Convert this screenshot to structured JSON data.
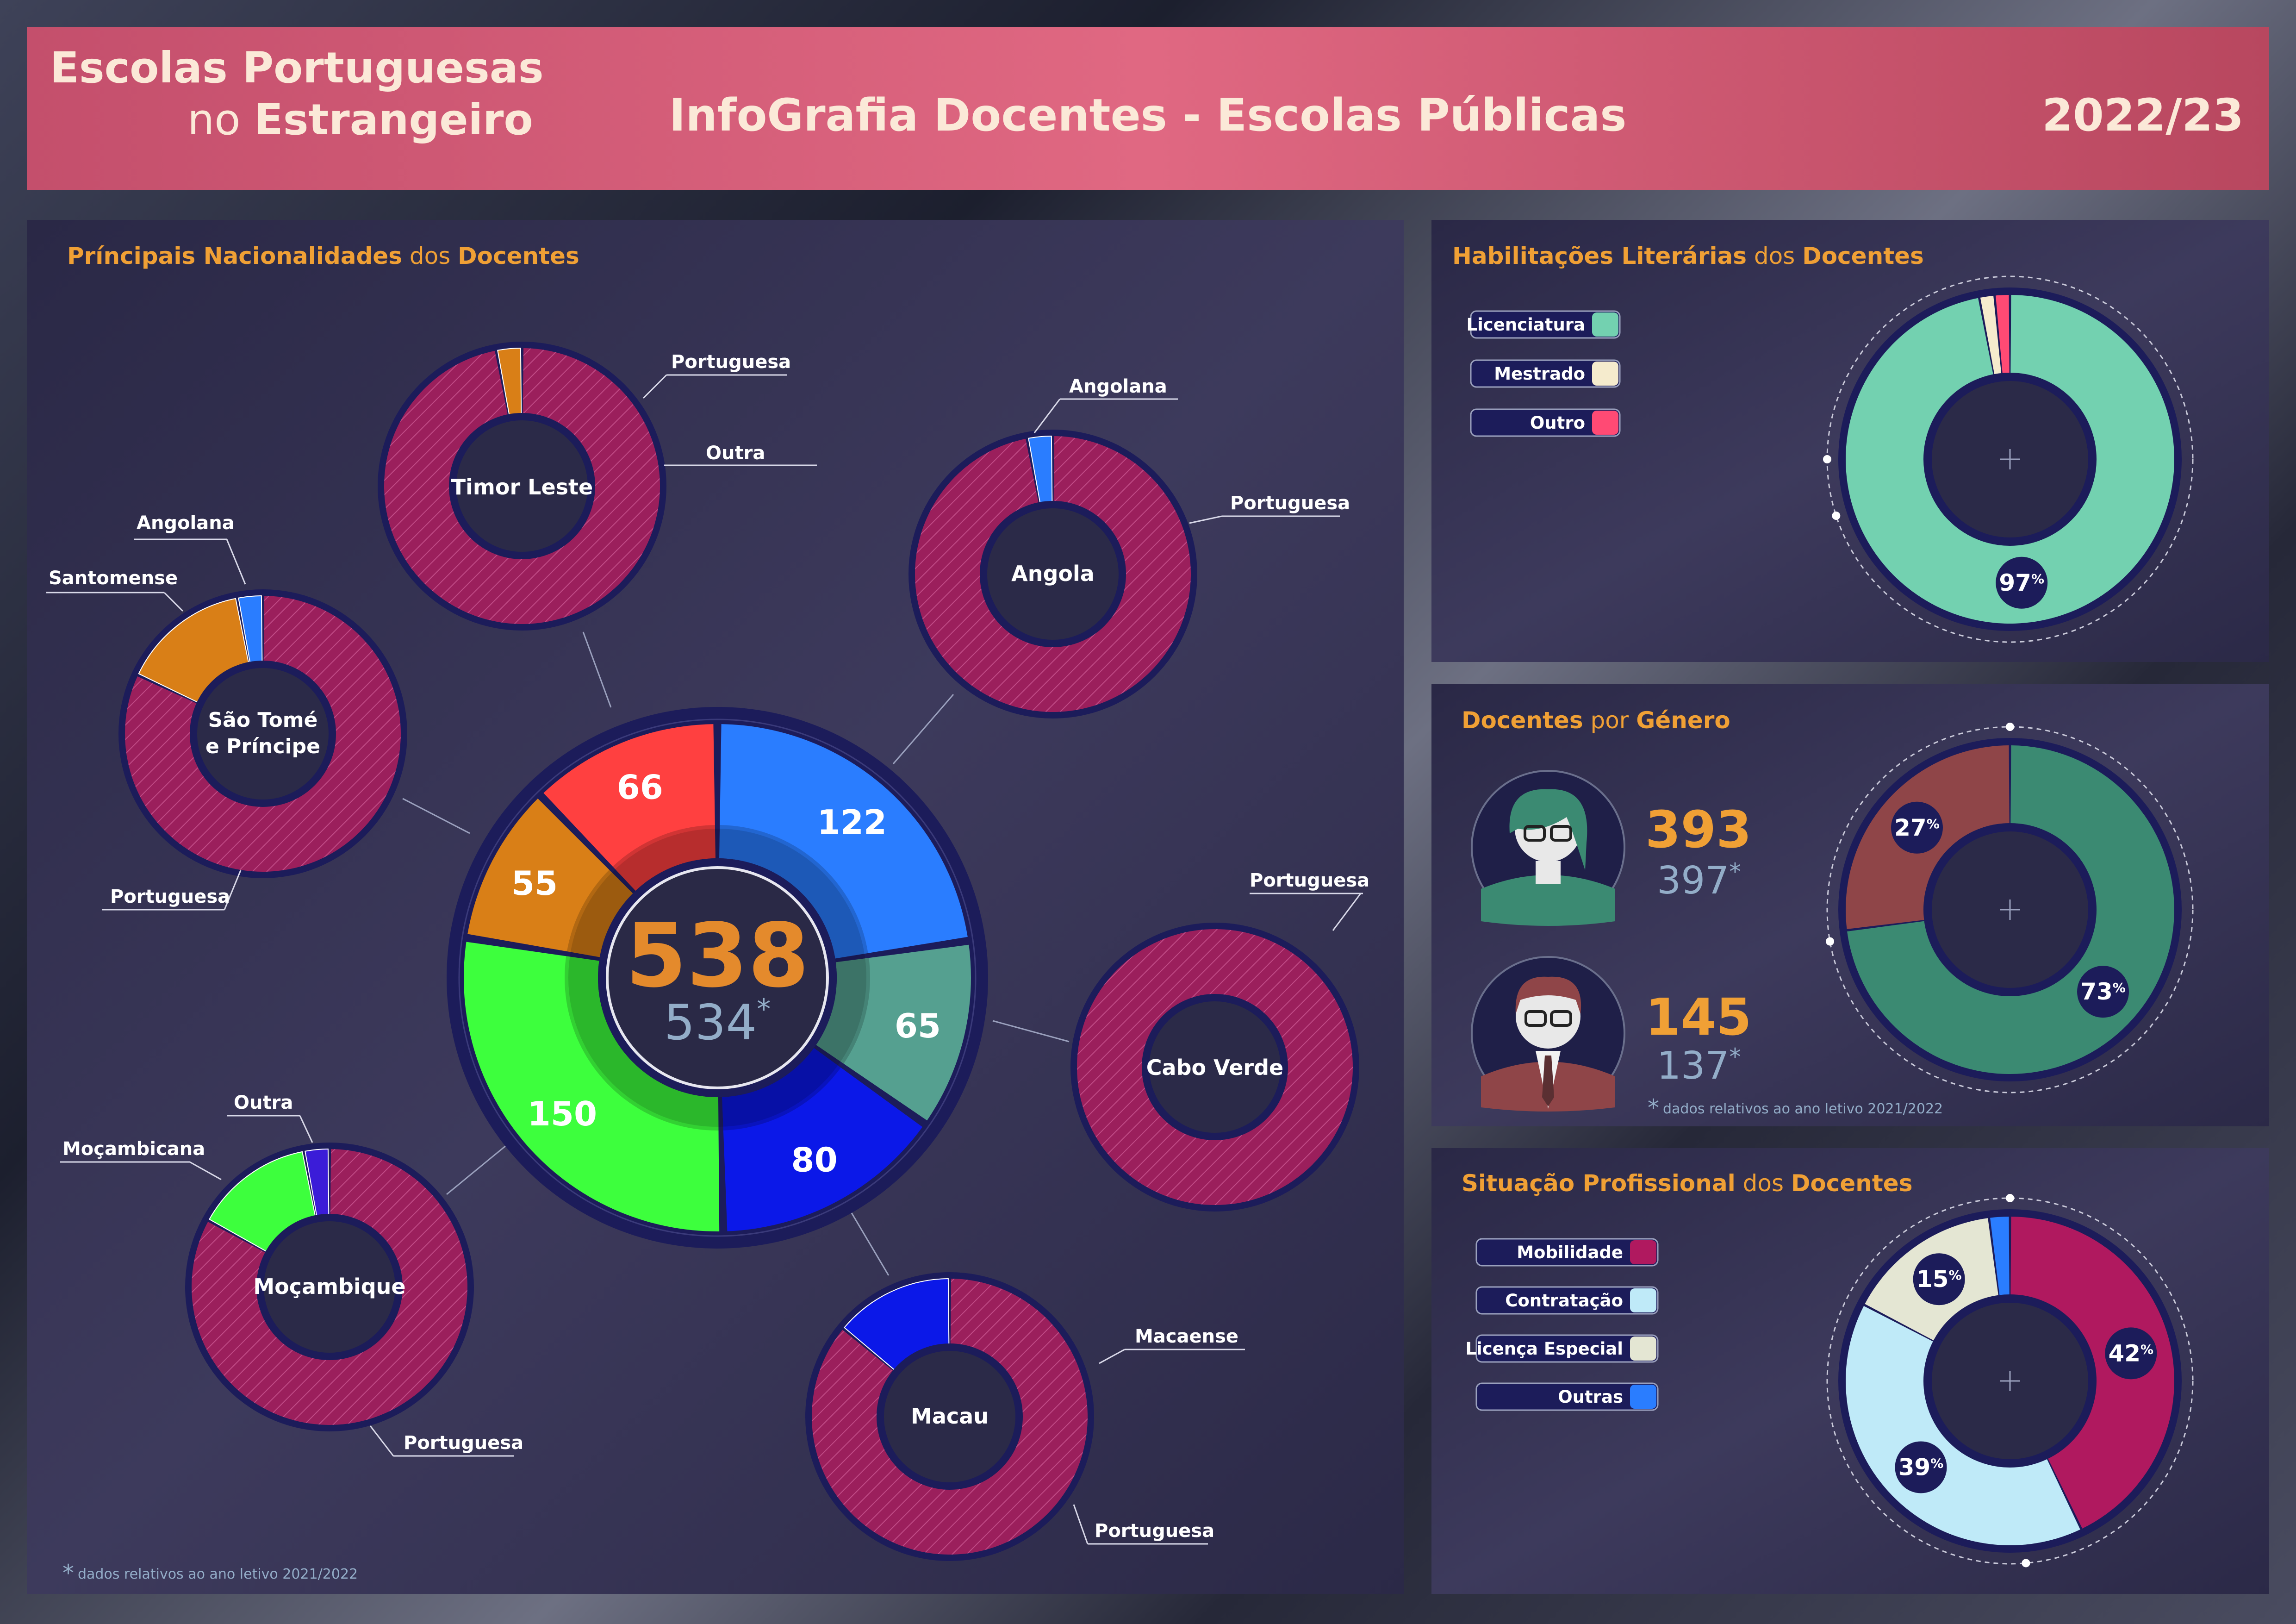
{
  "header": {
    "org_line1": "Escolas Portuguesas",
    "org_line2_plain": "no ",
    "org_line2_bold": "Estrangeiro",
    "title": "InfoGrafia Docentes - Escolas Públicas",
    "year": "2022/23"
  },
  "sections": {
    "nationalities": {
      "title_bold1": "Príncipais Nacionalidades",
      "title_plain": " dos ",
      "title_bold2": "Docentes"
    },
    "qualifications": {
      "title_bold1": "Habilitações Literárias",
      "title_plain": " dos ",
      "title_bold2": "Docentes"
    },
    "gender": {
      "title_bold1": "Docentes",
      "title_plain": " por ",
      "title_bold2": "Género"
    },
    "professional": {
      "title_bold1": "Situação Profissional",
      "title_plain": " dos ",
      "title_bold2": "Docentes"
    }
  },
  "footnotes": {
    "star": "*",
    "text": "dados relativos ao ano letivo 2021/2022"
  },
  "colors": {
    "accent_orange": "#f0a035",
    "magenta_hatch": "#9b1f5c",
    "green": "#3dff3d",
    "blue": "#1f7bff",
    "teal": "#55a090",
    "darkblue": "#0a18e0",
    "orange": "#d97f17",
    "red": "#ff4040",
    "ring_border": "#1c1c5a"
  },
  "chart_data": [
    {
      "id": "total-by-country",
      "type": "pie",
      "title": "Príncipais Nacionalidades dos Docentes",
      "center_total": "538",
      "center_previous": "534",
      "previous_star": "*",
      "categories": [
        "Angola",
        "Cabo Verde",
        "Macau",
        "Moçambique",
        "São Tomé e Príncipe",
        "Timor Leste"
      ],
      "values": [
        122,
        65,
        80,
        150,
        55,
        66
      ],
      "colors": [
        "#2a7dff",
        "#55a090",
        "#0b18e8",
        "#3dff3d",
        "#d97f17",
        "#ff4040"
      ]
    },
    {
      "id": "timor-leste",
      "type": "pie",
      "title": "Timor Leste",
      "categories": [
        "Portuguesa",
        "Outra"
      ],
      "values": [
        97,
        3
      ],
      "colors": [
        "#9b1f5c",
        "#d97f17"
      ]
    },
    {
      "id": "angola",
      "type": "pie",
      "title": "Angola",
      "categories": [
        "Portuguesa",
        "Angolana"
      ],
      "values": [
        97,
        3
      ],
      "colors": [
        "#9b1f5c",
        "#2a7dff"
      ]
    },
    {
      "id": "sao-tome",
      "type": "pie",
      "title": "São Tomé e Príncipe",
      "title_line1": "São Tomé",
      "title_line2": "e Príncipe",
      "categories": [
        "Portuguesa",
        "Santomense",
        "Angolana"
      ],
      "values": [
        82,
        15,
        3
      ],
      "colors": [
        "#9b1f5c",
        "#d97f17",
        "#2a7dff"
      ]
    },
    {
      "id": "cabo-verde",
      "type": "pie",
      "title": "Cabo Verde",
      "categories": [
        "Portuguesa"
      ],
      "values": [
        100
      ],
      "colors": [
        "#9b1f5c"
      ]
    },
    {
      "id": "mocambique",
      "type": "pie",
      "title": "Moçambique",
      "categories": [
        "Portuguesa",
        "Moçambicana",
        "Outra"
      ],
      "values": [
        83,
        14,
        3
      ],
      "colors": [
        "#9b1f5c",
        "#3dff3d",
        "#3b1cd8"
      ]
    },
    {
      "id": "macau",
      "type": "pie",
      "title": "Macau",
      "categories": [
        "Portuguesa",
        "Macaense"
      ],
      "values": [
        86,
        14
      ],
      "colors": [
        "#9b1f5c",
        "#0b18e8"
      ]
    },
    {
      "id": "qualifications",
      "type": "pie",
      "title": "Habilitações Literárias dos Docentes",
      "categories": [
        "Licenciatura",
        "Mestrado",
        "Outro"
      ],
      "values": [
        97,
        1.5,
        1.5
      ],
      "colors": [
        "#73d1b0",
        "#f5ebcd",
        "#ff4a74"
      ],
      "labels": [
        "97%",
        "",
        ""
      ],
      "label_main": "97",
      "label_unit": "%"
    },
    {
      "id": "gender",
      "type": "pie",
      "title": "Docentes por Género",
      "categories": [
        "Feminino",
        "Masculino"
      ],
      "values": [
        73,
        27
      ],
      "colors": [
        "#3b8a72",
        "#8f4548"
      ],
      "female": {
        "current": "393",
        "previous": "397"
      },
      "male": {
        "current": "145",
        "previous": "137"
      },
      "labels": [
        {
          "main": "73",
          "unit": "%"
        },
        {
          "main": "27",
          "unit": "%"
        }
      ]
    },
    {
      "id": "professional",
      "type": "pie",
      "title": "Situação Profissional dos Docentes",
      "categories": [
        "Mobilidade",
        "Contratação",
        "Licença Especial",
        "Outras"
      ],
      "values": [
        42,
        39,
        15,
        2
      ],
      "colors": [
        "#b0195f",
        "#bfeaf8",
        "#e4e6d3",
        "#2a7dff"
      ],
      "labels": [
        {
          "main": "42",
          "unit": "%"
        },
        {
          "main": "39",
          "unit": "%"
        },
        {
          "main": "15",
          "unit": "%"
        },
        null
      ]
    }
  ],
  "legend_labels": {
    "qualifications": [
      "Licenciatura",
      "Mestrado",
      "Outro"
    ],
    "professional": [
      "Mobilidade",
      "Contratação",
      "Licença Especial",
      "Outras"
    ]
  },
  "callouts": {
    "timor": [
      "Portuguesa",
      "Outra"
    ],
    "angola": [
      "Angolana",
      "Portuguesa"
    ],
    "saotome": [
      "Angolana",
      "Santomense",
      "Portuguesa"
    ],
    "caboverde": [
      "Portuguesa"
    ],
    "mocambique": [
      "Outra",
      "Moçambicana",
      "Portuguesa"
    ],
    "macau": [
      "Macaense",
      "Portuguesa"
    ]
  }
}
